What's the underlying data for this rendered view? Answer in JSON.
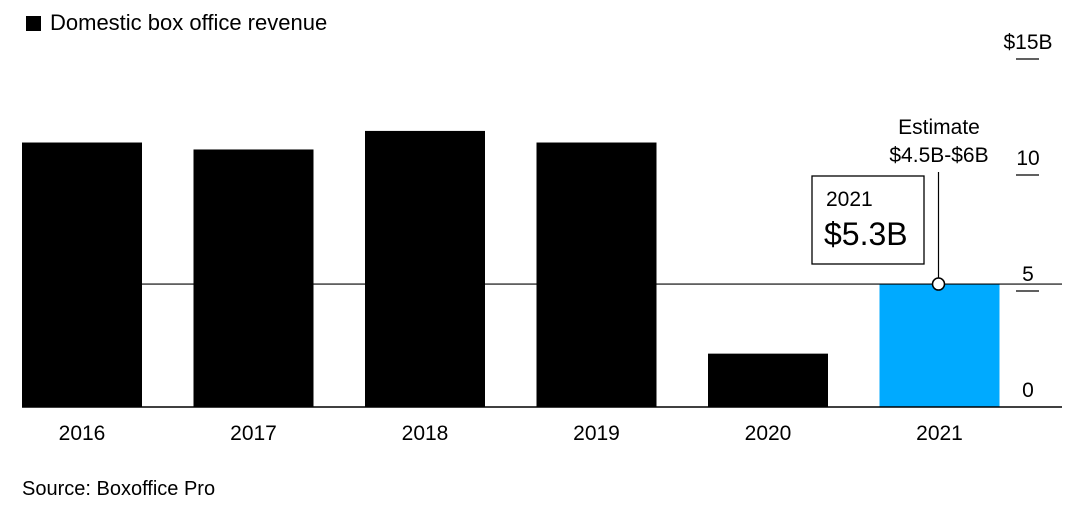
{
  "legend": {
    "label": "Domestic box office revenue",
    "color": "#000000"
  },
  "chart_data": {
    "type": "bar",
    "title": "",
    "xlabel": "",
    "ylabel": "",
    "categories": [
      "2016",
      "2017",
      "2018",
      "2019",
      "2020",
      "2021"
    ],
    "series": [
      {
        "name": "Domestic box office revenue",
        "values": [
          11.4,
          11.1,
          11.9,
          11.4,
          2.3,
          5.3
        ]
      }
    ],
    "bar_colors": [
      "#000000",
      "#000000",
      "#000000",
      "#000000",
      "#000000",
      "#00aaff"
    ],
    "ylim": [
      0,
      15
    ],
    "yticks": [
      {
        "value": 0,
        "label": "0"
      },
      {
        "value": 5,
        "label": "5"
      },
      {
        "value": 10,
        "label": "10"
      },
      {
        "value": 15,
        "label": "$15B"
      }
    ],
    "reference_line": {
      "value": 5.3
    },
    "annotations": {
      "callout": {
        "category": "2021",
        "year": "2021",
        "value_label": "$5.3B"
      },
      "estimate": {
        "title": "Estimate",
        "range": "$4.5B-$6B"
      }
    },
    "grid": false
  },
  "source": "Source: Boxoffice Pro"
}
